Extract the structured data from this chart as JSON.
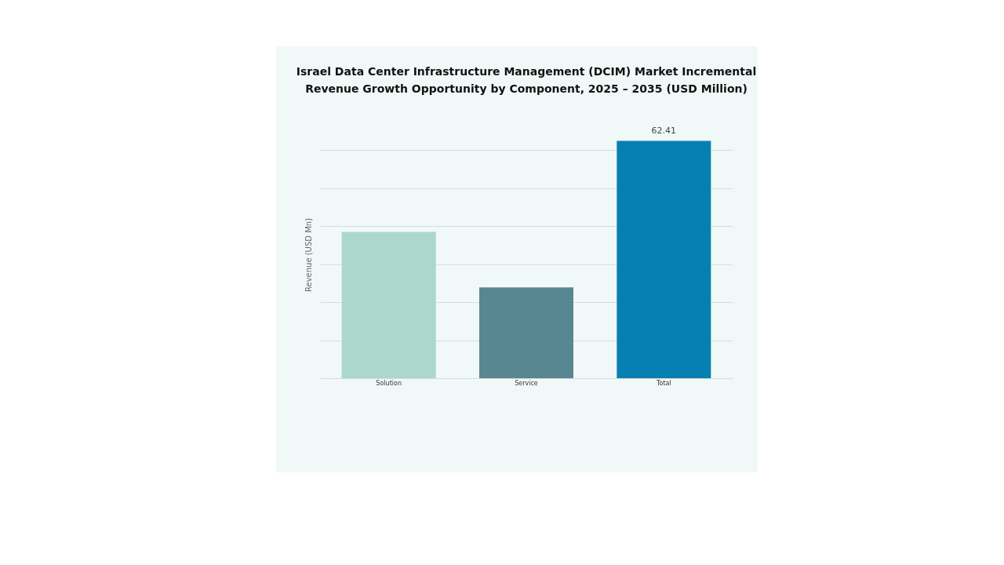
{
  "chart_data": {
    "type": "bar",
    "title": "Israel Data Center Infrastructure Management (DCIM) Market Incremental Revenue Growth Opportunity by Component, 2025 – 2035 (USD Million)",
    "ylabel": "Revenue (USD Mn)",
    "categories": [
      "Solution",
      "Service",
      "Total"
    ],
    "values": [
      38.5,
      23.9,
      62.41
    ],
    "colors": [
      "#acd8cb",
      "#588791",
      "#0680b2"
    ],
    "value_labels": [
      null,
      null,
      "62.41"
    ],
    "tick_labels": "x",
    "grid": "y"
  }
}
